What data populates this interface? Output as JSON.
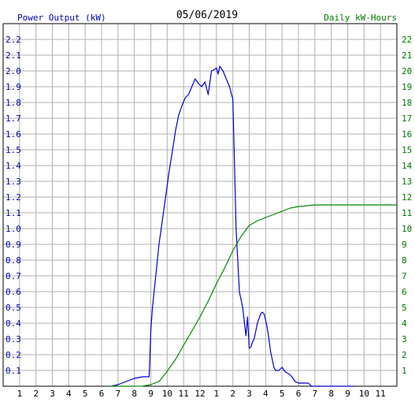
{
  "chart_data": {
    "type": "line",
    "title": "05/06/2019",
    "left_axis_label": "Power Output (kW)",
    "right_axis_label": "Daily kW-Hours",
    "x_tick_labels": [
      "1",
      "2",
      "3",
      "4",
      "5",
      "6",
      "7",
      "8",
      "9",
      "10",
      "11",
      "12",
      "1",
      "2",
      "3",
      "4",
      "5",
      "6",
      "7",
      "8",
      "9",
      "10",
      "11"
    ],
    "x_range_hours": [
      0,
      24
    ],
    "left_ylim": [
      0,
      2.3
    ],
    "right_ylim": [
      0,
      23
    ],
    "left_ticks": [
      "0.1",
      "0.2",
      "0.3",
      "0.4",
      "0.5",
      "0.6",
      "0.7",
      "0.8",
      "0.9",
      "1.0",
      "1.1",
      "1.2",
      "1.3",
      "1.4",
      "1.5",
      "1.6",
      "1.7",
      "1.8",
      "1.9",
      "2.0",
      "2.1",
      "2.2"
    ],
    "right_ticks": [
      "1",
      "2",
      "3",
      "4",
      "5",
      "6",
      "7",
      "8",
      "9",
      "10",
      "11",
      "12",
      "13",
      "14",
      "15",
      "16",
      "17",
      "18",
      "19",
      "20",
      "21",
      "22"
    ],
    "grid": true,
    "colors": {
      "power": "#0000cc",
      "energy": "#008800",
      "left_axis_text": "#0000aa",
      "right_axis_text": "#007700",
      "grid": "#b0b0b0",
      "frame": "#000000"
    },
    "series": [
      {
        "axis": "left",
        "x_hours": [
          6.6,
          7.0,
          7.5,
          8.0,
          8.5,
          8.9,
          9.0,
          9.1,
          9.3,
          9.5,
          9.7,
          9.9,
          10.1,
          10.3,
          10.5,
          10.7,
          10.9,
          11.1,
          11.3,
          11.5,
          11.7,
          11.9,
          12.1,
          12.3,
          12.5,
          12.7,
          12.9,
          13.0,
          13.1,
          13.2,
          13.4,
          13.6,
          13.8,
          14.0,
          14.2,
          14.4,
          14.6,
          14.8,
          14.9,
          15.0,
          15.1,
          15.2,
          15.3,
          15.4,
          15.5,
          15.6,
          15.7,
          15.8,
          15.9,
          16.0,
          16.1,
          16.2,
          16.3,
          16.4,
          16.5,
          16.6,
          16.8,
          17.0,
          17.2,
          17.4,
          17.6,
          17.8,
          18.0,
          18.1,
          18.2,
          18.4,
          18.6,
          18.8,
          19.0,
          19.2,
          19.4,
          19.6,
          19.8,
          20.0,
          20.2,
          20.4,
          20.6,
          20.8,
          21.0,
          21.2,
          21.4
        ],
        "values": [
          0.0,
          0.01,
          0.03,
          0.05,
          0.06,
          0.06,
          0.35,
          0.5,
          0.7,
          0.9,
          1.05,
          1.2,
          1.35,
          1.48,
          1.62,
          1.72,
          1.78,
          1.83,
          1.85,
          1.9,
          1.95,
          1.92,
          1.9,
          1.93,
          1.85,
          2.0,
          2.01,
          2.02,
          1.98,
          2.03,
          2.0,
          1.95,
          1.9,
          1.82,
          1.0,
          0.6,
          0.5,
          0.32,
          0.44,
          0.24,
          0.25,
          0.28,
          0.3,
          0.35,
          0.4,
          0.43,
          0.46,
          0.47,
          0.46,
          0.42,
          0.37,
          0.3,
          0.22,
          0.17,
          0.12,
          0.1,
          0.1,
          0.12,
          0.09,
          0.08,
          0.06,
          0.03,
          0.02,
          0.02,
          0.02,
          0.02,
          0.02,
          0.0,
          0.0,
          0.0,
          0.0,
          0.0,
          0.0,
          0.0,
          0.0,
          0.0,
          0.0,
          0.0,
          0.0,
          0.0,
          0.0
        ]
      },
      {
        "axis": "right",
        "x_hours": [
          6.5,
          7.5,
          8.0,
          8.5,
          9.0,
          9.5,
          10.0,
          10.5,
          11.0,
          11.5,
          12.0,
          12.5,
          13.0,
          13.5,
          14.0,
          14.5,
          15.0,
          15.5,
          16.0,
          16.5,
          17.0,
          17.5,
          18.0,
          18.5,
          19.0,
          20.0,
          21.0,
          22.0,
          23.0,
          24.0
        ],
        "values": [
          0.0,
          0.0,
          0.0,
          0.01,
          0.1,
          0.3,
          0.95,
          1.7,
          2.6,
          3.5,
          4.4,
          5.4,
          6.5,
          7.5,
          8.6,
          9.5,
          10.2,
          10.5,
          10.7,
          10.9,
          11.1,
          11.3,
          11.4,
          11.45,
          11.5,
          11.5,
          11.5,
          11.5,
          11.5,
          11.5
        ]
      }
    ]
  }
}
